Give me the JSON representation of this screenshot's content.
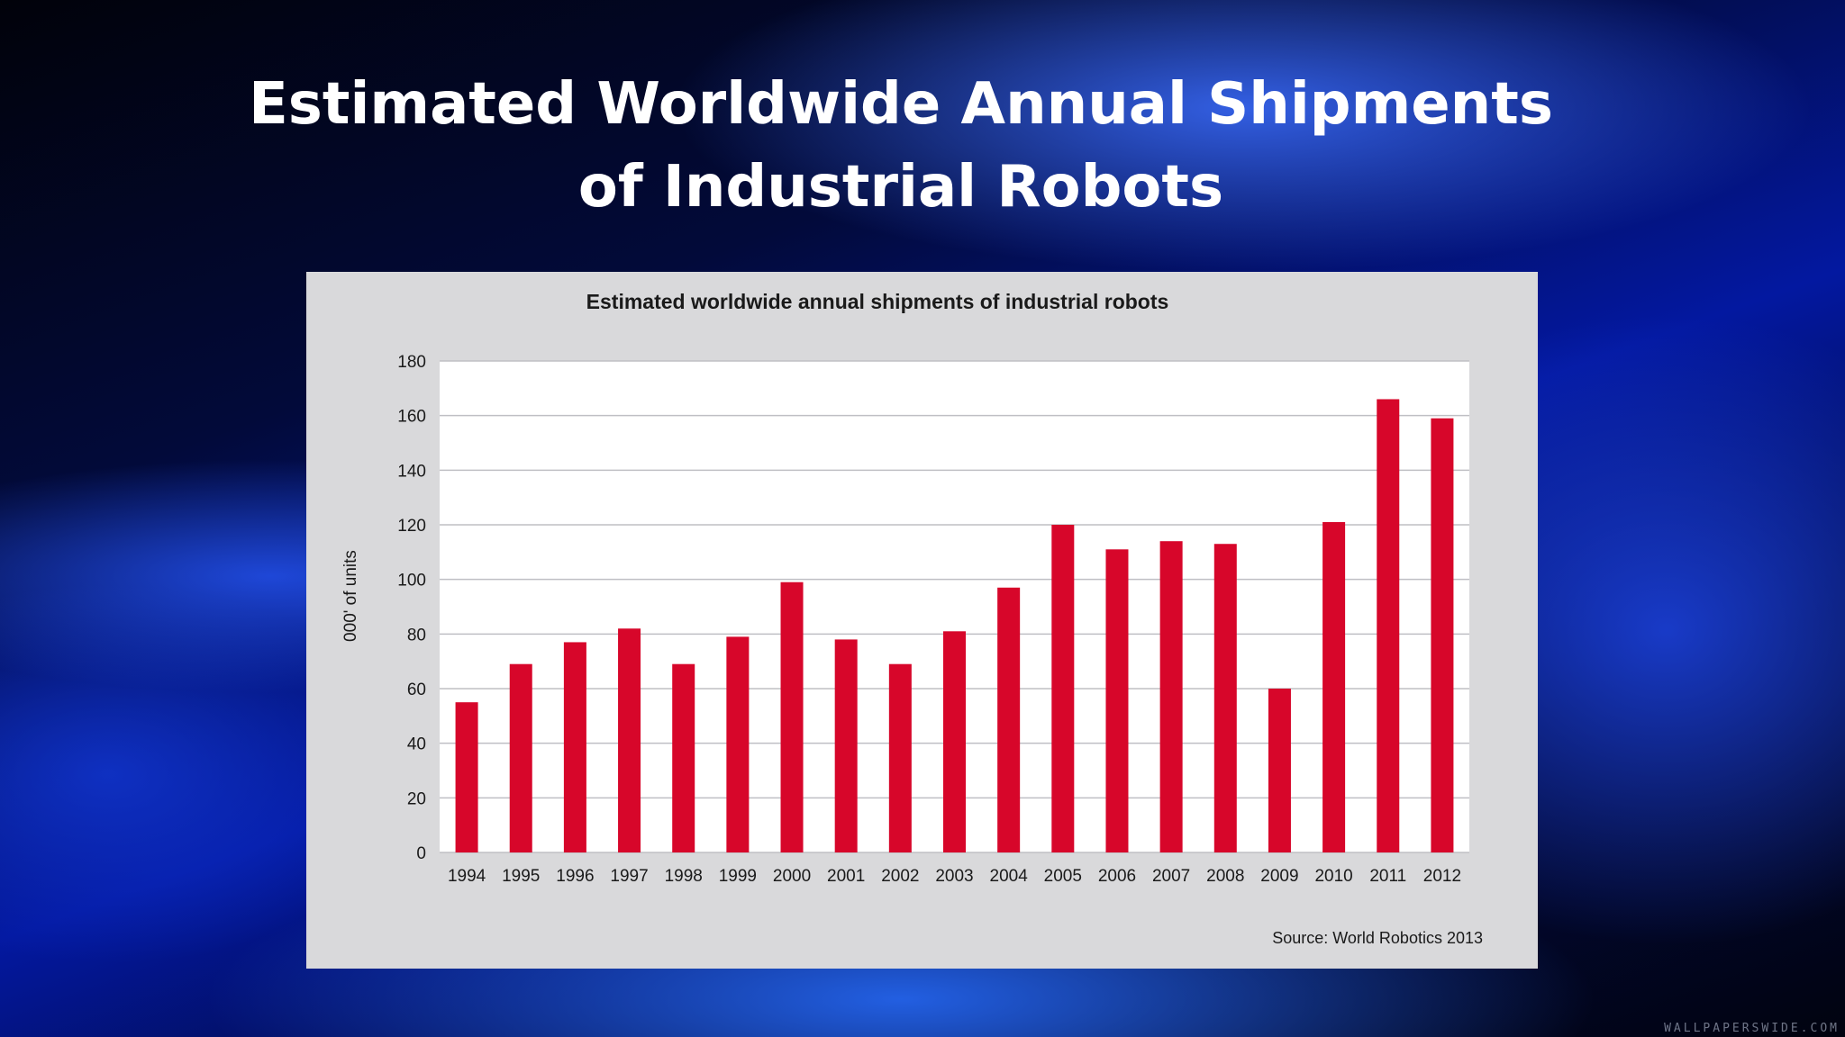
{
  "slide": {
    "title_line1": "Estimated Worldwide Annual Shipments",
    "title_line2": "of Industrial Robots",
    "watermark": "WALLPAPERSWIDE.COM"
  },
  "chart_data": {
    "type": "bar",
    "title": "Estimated worldwide annual shipments of industrial robots",
    "xlabel": "",
    "ylabel": "000' of units",
    "source": "Source: World Robotics 2013",
    "ylim": [
      0,
      180
    ],
    "yticks": [
      0,
      20,
      40,
      60,
      80,
      100,
      120,
      140,
      160,
      180
    ],
    "grid": true,
    "bar_color": "#d7062a",
    "categories": [
      "1994",
      "1995",
      "1996",
      "1997",
      "1998",
      "1999",
      "2000",
      "2001",
      "2002",
      "2003",
      "2004",
      "2005",
      "2006",
      "2007",
      "2008",
      "2009",
      "2010",
      "2011",
      "2012"
    ],
    "values": [
      55,
      69,
      77,
      82,
      69,
      79,
      99,
      78,
      69,
      81,
      97,
      120,
      111,
      114,
      113,
      60,
      121,
      166,
      159
    ]
  }
}
